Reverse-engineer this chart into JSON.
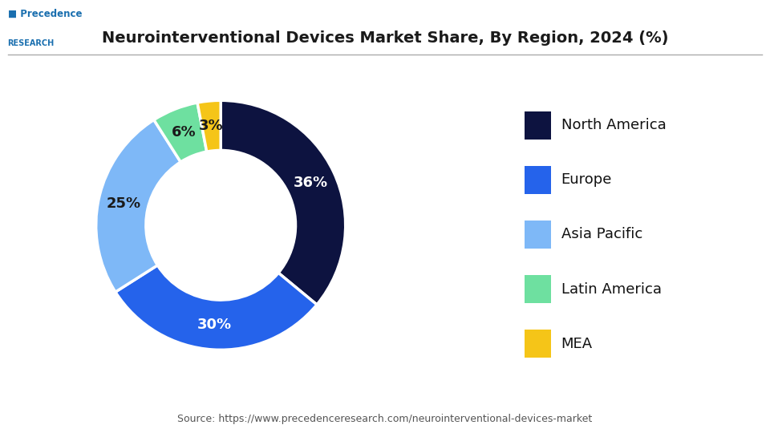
{
  "title": "Neurointerventional Devices Market Share, By Region, 2024 (%)",
  "segments": [
    {
      "label": "North America",
      "value": 36,
      "color": "#0d1340",
      "text_color": "white"
    },
    {
      "label": "Europe",
      "value": 30,
      "color": "#2563eb",
      "text_color": "white"
    },
    {
      "label": "Asia Pacific",
      "value": 25,
      "color": "#7eb8f7",
      "text_color": "#1a1a1a"
    },
    {
      "label": "Latin America",
      "value": 6,
      "color": "#6ee0a0",
      "text_color": "#1a1a1a"
    },
    {
      "label": "MEA",
      "value": 3,
      "color": "#f5c518",
      "text_color": "#1a1a1a"
    }
  ],
  "source_text": "Source: https://www.precedenceresearch.com/neurointerventional-devices-market",
  "background_color": "#ffffff",
  "title_fontsize": 14,
  "label_fontsize": 13,
  "legend_fontsize": 13,
  "source_fontsize": 9,
  "donut_width": 0.4,
  "start_angle": 90
}
